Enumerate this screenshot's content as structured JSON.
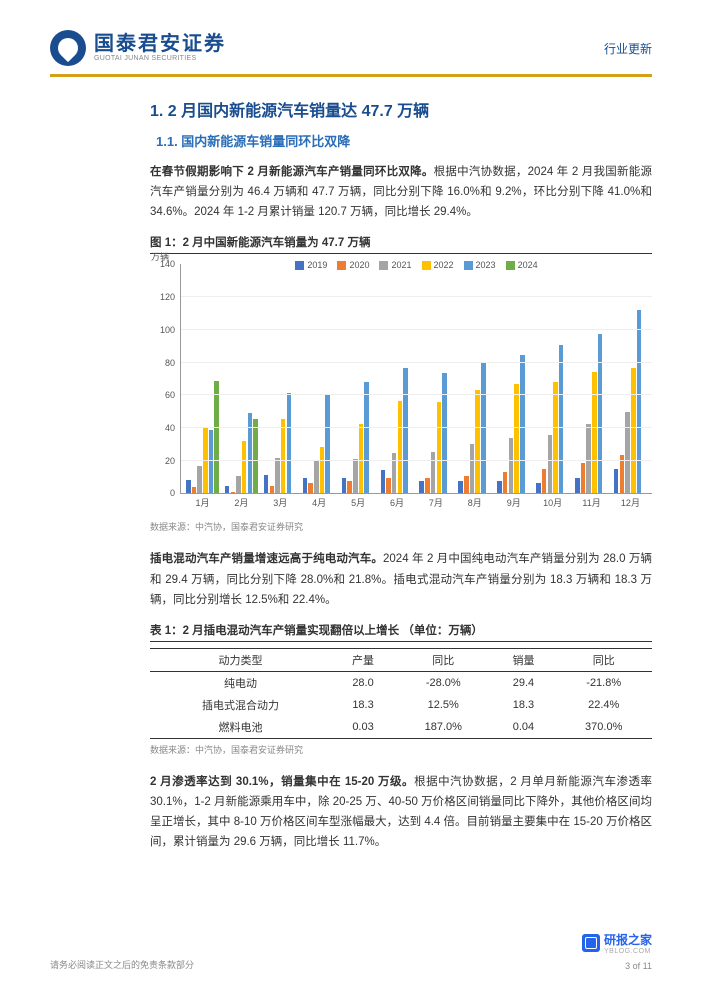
{
  "header": {
    "logo_cn": "国泰君安证券",
    "logo_en": "GUOTAI JUNAN SECURITIES",
    "right": "行业更新"
  },
  "h1": "1. 2 月国内新能源汽车销量达 47.7 万辆",
  "h2": "1.1.  国内新能源车销量同环比双降",
  "para1_bold": "在春节假期影响下 2 月新能源汽车产销量同环比双降。",
  "para1_rest": "根据中汽协数据，2024 年 2 月我国新能源汽车产销量分别为 46.4 万辆和 47.7 万辆，同比分别下降 16.0%和 9.2%，环比分别下降 41.0%和 34.6%。2024 年 1-2 月累计销量 120.7 万辆，同比增长 29.4%。",
  "fig1_title": "图 1：2 月中国新能源汽车销量为 47.7 万辆",
  "fig1_source": "数据来源：中汽协，国泰君安证券研究",
  "chart": {
    "y_label": "万辆",
    "ymax": 140,
    "yticks": [
      0,
      20,
      40,
      60,
      80,
      100,
      120,
      140
    ],
    "series": [
      {
        "name": "2019",
        "color": "#4472c4"
      },
      {
        "name": "2020",
        "color": "#ed7d31"
      },
      {
        "name": "2021",
        "color": "#a5a5a5"
      },
      {
        "name": "2022",
        "color": "#ffc000"
      },
      {
        "name": "2023",
        "color": "#5b9bd5"
      },
      {
        "name": "2024",
        "color": "#70ad47"
      }
    ],
    "categories": [
      "1月",
      "2月",
      "3月",
      "4月",
      "5月",
      "6月",
      "7月",
      "8月",
      "9月",
      "10月",
      "11月",
      "12月"
    ],
    "data": {
      "2019": [
        9,
        5,
        12,
        10,
        10,
        15,
        8,
        8,
        8,
        7,
        10,
        16
      ],
      "2020": [
        4,
        1,
        5,
        7,
        8,
        10,
        10,
        11,
        14,
        16,
        20,
        25
      ],
      "2021": [
        18,
        11,
        23,
        21,
        22,
        26,
        27,
        32,
        36,
        38,
        45,
        53
      ],
      "2022": [
        43,
        34,
        48,
        30,
        45,
        60,
        59,
        67,
        71,
        72,
        79,
        81
      ],
      "2023": [
        41,
        52,
        65,
        64,
        72,
        81,
        78,
        85,
        90,
        96,
        103,
        119
      ],
      "2024": [
        73,
        48,
        null,
        null,
        null,
        null,
        null,
        null,
        null,
        null,
        null,
        null
      ]
    }
  },
  "para2_bold": "插电混动汽车产销量增速远高于纯电动汽车。",
  "para2_rest": "2024 年 2 月中国纯电动汽车产销量分别为 28.0 万辆和 29.4 万辆，同比分别下降 28.0%和 21.8%。插电式混动汽车产销量分别为 18.3 万辆和 18.3 万辆，同比分别增长 12.5%和 22.4%。",
  "table1_title": "表 1：2 月插电混动汽车产销量实现翻倍以上增长  （单位：万辆）",
  "table1": {
    "columns": [
      "动力类型",
      "产量",
      "同比",
      "销量",
      "同比"
    ],
    "rows": [
      [
        "纯电动",
        "28.0",
        "-28.0%",
        "29.4",
        "-21.8%"
      ],
      [
        "插电式混合动力",
        "18.3",
        "12.5%",
        "18.3",
        "22.4%"
      ],
      [
        "燃料电池",
        "0.03",
        "187.0%",
        "0.04",
        "370.0%"
      ]
    ]
  },
  "table1_source": "数据来源：中汽协，国泰君安证券研究",
  "para3_bold": "2 月渗透率达到 30.1%，销量集中在 15-20 万级。",
  "para3_rest": "根据中汽协数据，2 月单月新能源汽车渗透率 30.1%，1-2 月新能源乘用车中，除 20-25 万、40-50 万价格区间销量同比下降外，其他价格区间均呈正增长，其中 8-10 万价格区间车型涨幅最大，达到 4.4 倍。目前销量主要集中在 15-20 万价格区间，累计销量为 29.6 万辆，同比增长 11.7%。",
  "footer": {
    "left": "请务必阅读正文之后的免责条款部分",
    "page": "3 of 11",
    "wm_name": "研报之家",
    "wm_url": "YBLOG.COM"
  }
}
